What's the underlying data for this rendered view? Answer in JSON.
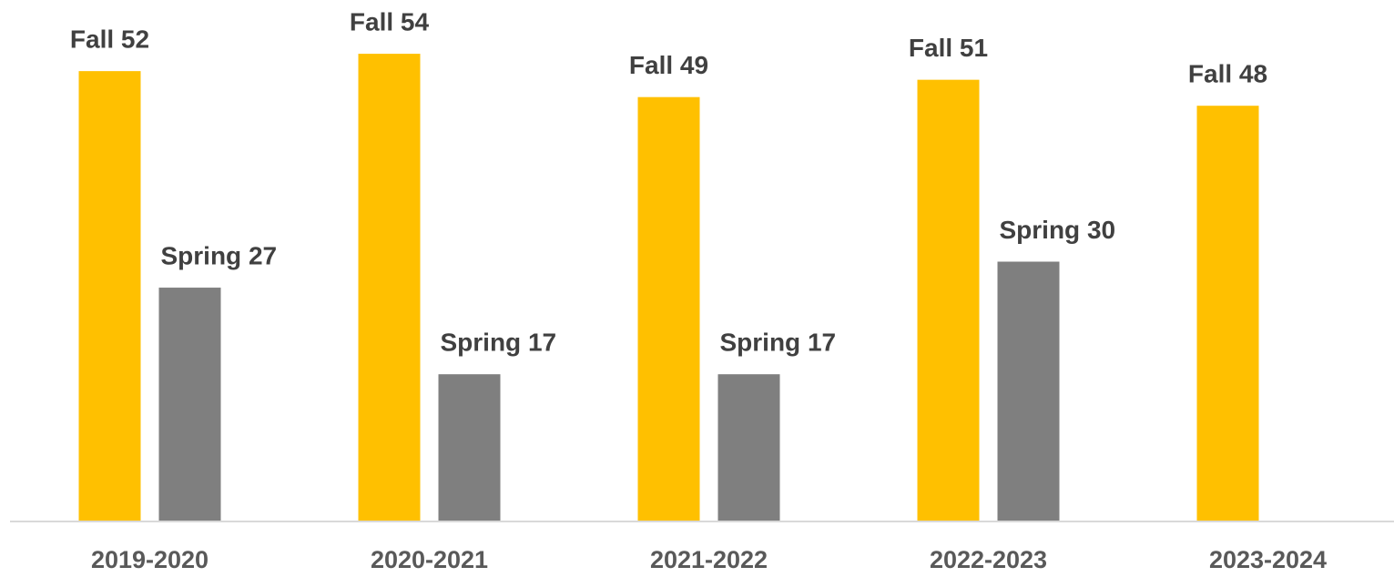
{
  "chart_data": {
    "type": "bar",
    "categories": [
      "2019-2020",
      "2020-2021",
      "2021-2022",
      "2022-2023",
      "2023-2024"
    ],
    "series": [
      {
        "color": "#ffc000",
        "values": [
          52,
          54,
          49,
          51,
          48
        ],
        "value_labels": [
          "Fall 52",
          "Fall 54",
          "Fall 49",
          "Fall 51",
          "Fall 48"
        ]
      },
      {
        "color": "#7f7f7f",
        "values": [
          27,
          17,
          17,
          30,
          null
        ],
        "value_labels": [
          "Spring 27",
          "Spring 17",
          "Spring 17",
          "Spring 30",
          null
        ]
      }
    ],
    "ylim": [
      0,
      60
    ]
  }
}
